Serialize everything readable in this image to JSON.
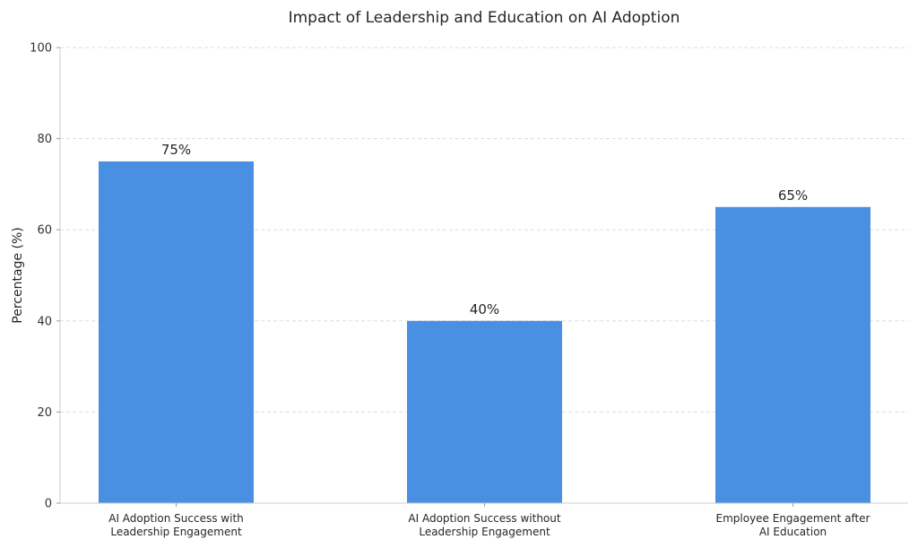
{
  "chart_data": {
    "type": "bar",
    "title": "Impact of Leadership and Education on AI Adoption",
    "xlabel": "",
    "ylabel": "Percentage (%)",
    "ylim": [
      0,
      100
    ],
    "yticks": [
      0,
      20,
      40,
      60,
      80,
      100
    ],
    "grid": "y-dashed",
    "categories": [
      [
        "AI Adoption Success with",
        "Leadership Engagement"
      ],
      [
        "AI Adoption Success without",
        "Leadership Engagement"
      ],
      [
        "Employee Engagement after",
        "AI Education"
      ]
    ],
    "values": [
      75,
      40,
      65
    ],
    "data_labels": [
      "75%",
      "40%",
      "65%"
    ],
    "colors": {
      "bar": "#4a90e2",
      "grid": "#dddddd",
      "axis": "#cccccc"
    }
  }
}
